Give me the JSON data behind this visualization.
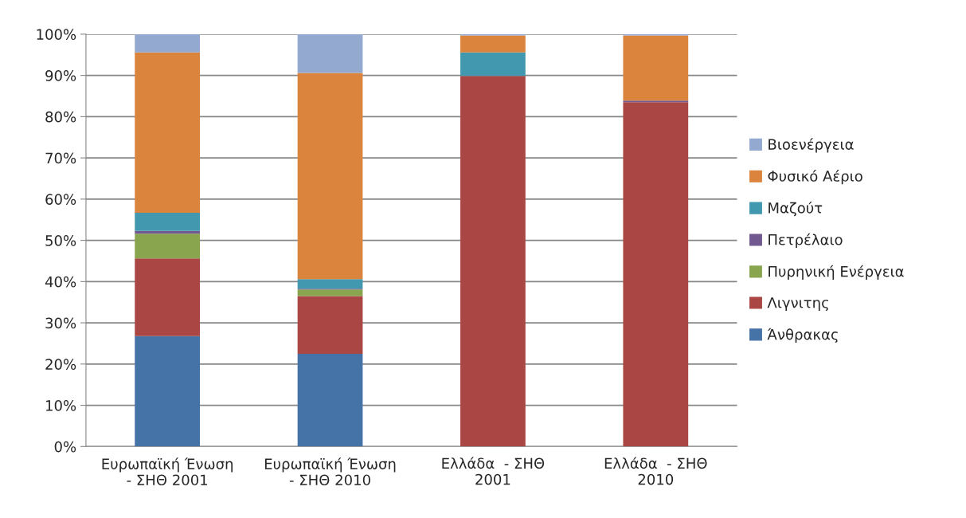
{
  "chart_data": {
    "type": "bar",
    "stacked": true,
    "categories": [
      "Ευρωπαϊκή Ένωση\n- ΣΗΘ 2001",
      "Ευρωπαϊκή Ένωση\n- ΣΗΘ 2010",
      "Ελλάδα  - ΣΗΘ\n2001",
      "Ελλάδα  - ΣΗΘ\n2010"
    ],
    "series": [
      {
        "name": "Άνθρακας",
        "color": "#4572a7",
        "values": [
          26.8,
          22.5,
          0,
          0
        ]
      },
      {
        "name": "Λιγνιτης",
        "color": "#aa4643",
        "values": [
          18.8,
          14.0,
          89.9,
          83.5
        ]
      },
      {
        "name": "Πυρηνική Ενέργεια",
        "color": "#89a54e",
        "values": [
          6.0,
          1.6,
          0,
          0
        ]
      },
      {
        "name": "Πετρέλαιο",
        "color": "#71588f",
        "values": [
          0.7,
          0.2,
          0,
          0.4
        ]
      },
      {
        "name": "Μαζούτ",
        "color": "#4198af",
        "values": [
          4.4,
          2.3,
          5.7,
          0
        ]
      },
      {
        "name": "Φυσικό Αέριο",
        "color": "#db843d",
        "values": [
          38.9,
          50.0,
          4.1,
          15.8
        ]
      },
      {
        "name": "Βιοενέργεια",
        "color": "#93a9cf",
        "values": [
          4.4,
          9.4,
          0.3,
          0.3
        ]
      }
    ],
    "ylim": [
      0,
      100
    ],
    "yticks": [
      {
        "value": 0,
        "label": "0%"
      },
      {
        "value": 10,
        "label": "10%"
      },
      {
        "value": 20,
        "label": "20%"
      },
      {
        "value": 30,
        "label": "30%"
      },
      {
        "value": 40,
        "label": "40%"
      },
      {
        "value": 50,
        "label": "50%"
      },
      {
        "value": 60,
        "label": "60%"
      },
      {
        "value": 70,
        "label": "70%"
      },
      {
        "value": 80,
        "label": "80%"
      },
      {
        "value": 90,
        "label": "90%"
      },
      {
        "value": 100,
        "label": "100%"
      }
    ],
    "grid": "y",
    "legend": "right"
  }
}
